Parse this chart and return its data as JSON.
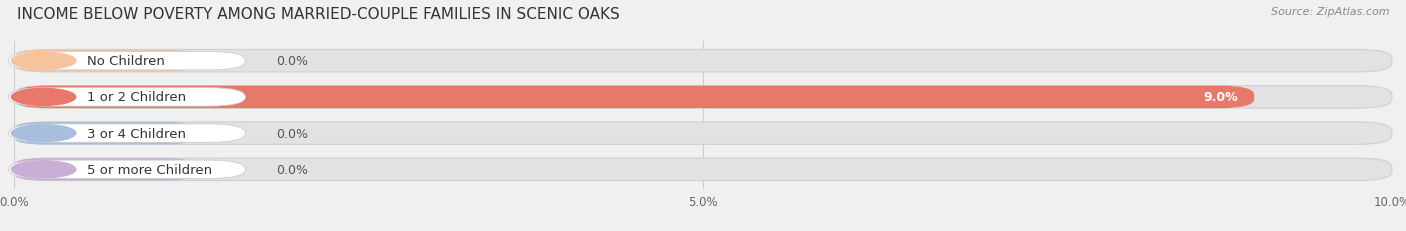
{
  "title": "INCOME BELOW POVERTY AMONG MARRIED-COUPLE FAMILIES IN SCENIC OAKS",
  "source": "Source: ZipAtlas.com",
  "categories": [
    "No Children",
    "1 or 2 Children",
    "3 or 4 Children",
    "5 or more Children"
  ],
  "values": [
    0.0,
    9.0,
    0.0,
    0.0
  ],
  "bar_colors": [
    "#f5c49e",
    "#e8786a",
    "#a8bedd",
    "#c9aed6"
  ],
  "xlim": [
    0,
    10.0
  ],
  "xticks": [
    0.0,
    5.0,
    10.0
  ],
  "xtick_labels": [
    "0.0%",
    "5.0%",
    "10.0%"
  ],
  "background_color": "#f0f0f0",
  "bar_background_color": "#e2e2e2",
  "title_fontsize": 11,
  "label_fontsize": 9.5,
  "value_fontsize": 9
}
